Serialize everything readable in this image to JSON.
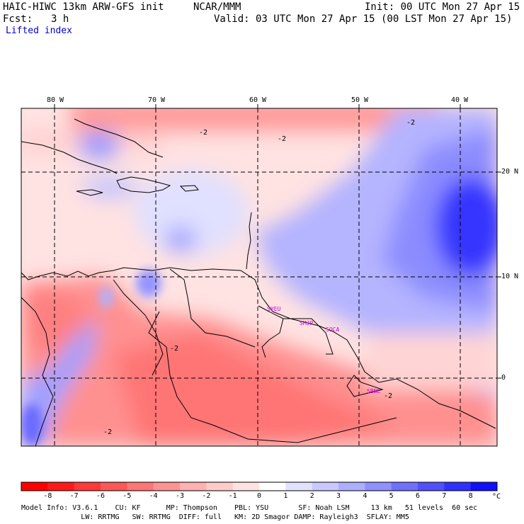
{
  "header": {
    "model_title": "HAIC-HIWC 13km ARW-GFS init",
    "org": "NCAR/MMM",
    "init": "Init: 00 UTC Mon 27 Apr 15",
    "fcst_label": "Fcst:",
    "fcst_value": "3 h",
    "valid": "Valid: 03 UTC Mon 27 Apr 15 (00 LST Mon 27 Apr 15)",
    "field": "Lifted index"
  },
  "map": {
    "lon_labels": [
      "80 W",
      "70 W",
      "60 W",
      "50 W",
      "40 W"
    ],
    "lat_labels": [
      "20 N",
      "10 N",
      "0"
    ],
    "contour_labels": [
      "-2",
      "-2",
      "-2",
      "-2",
      "-2",
      "-2"
    ],
    "stations": [
      "SYEU",
      "SMJP",
      "SOCA",
      "SBBE"
    ],
    "colors": {
      "coast": "#000000",
      "grid": "#000000",
      "station": "#cc00cc"
    }
  },
  "colorbar": {
    "labels": [
      "-8",
      "-7",
      "-6",
      "-5",
      "-4",
      "-3",
      "-2",
      "-1",
      "0",
      "1",
      "2",
      "3",
      "4",
      "5",
      "6",
      "7",
      "8"
    ],
    "unit": "°C",
    "colors": [
      "#ff1a1a",
      "#ff3838",
      "#ff5656",
      "#ff7474",
      "#ff9292",
      "#ffb0b0",
      "#ffcaca",
      "#ffe2e2",
      "#ffffff",
      "#e2e2ff",
      "#c8c8ff",
      "#aeaeff",
      "#9090ff",
      "#7070ff",
      "#5050ff",
      "#3030ff",
      "#1010ff"
    ]
  },
  "model_info": {
    "line1": "Model Info: V3.6.1    CU: KF      MP: Thompson    PBL: YSU       SF: Noah LSM     13 km   51 levels  60 sec",
    "line2": "              LW: RRTMG   SW: RRTMG  DIFF: full   KM: 2D Smagor DAMP: Rayleigh3  SFLAY: MM5"
  }
}
